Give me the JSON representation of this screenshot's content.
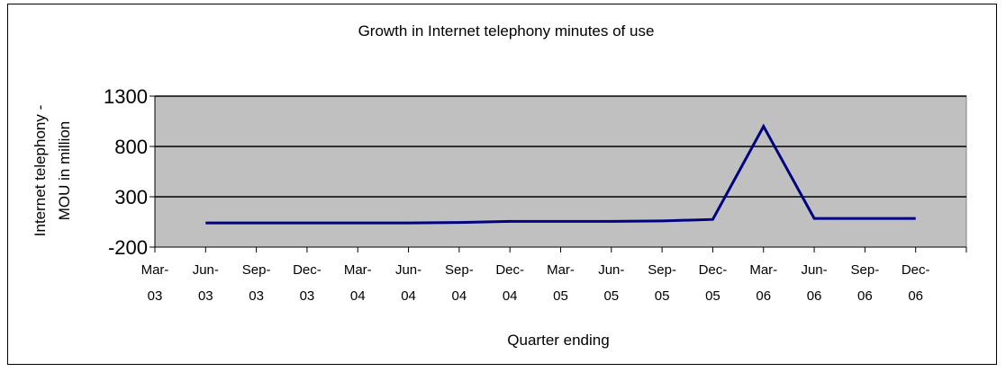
{
  "chart_data": {
    "type": "line",
    "title": "Growth in Internet telephony minutes of use",
    "xlabel": "Quarter ending",
    "ylabel_lines": [
      "Internet telephony -",
      "MOU in million"
    ],
    "categories": [
      [
        "Mar-",
        "03"
      ],
      [
        "Jun-",
        "03"
      ],
      [
        "Sep-",
        "03"
      ],
      [
        "Dec-",
        "03"
      ],
      [
        "Mar-",
        "04"
      ],
      [
        "Jun-",
        "04"
      ],
      [
        "Sep-",
        "04"
      ],
      [
        "Dec-",
        "04"
      ],
      [
        "Mar-",
        "05"
      ],
      [
        "Jun-",
        "05"
      ],
      [
        "Sep-",
        "05"
      ],
      [
        "Dec-",
        "05"
      ],
      [
        "Mar-",
        "06"
      ],
      [
        "Jun-",
        "06"
      ],
      [
        "Sep-",
        "06"
      ],
      [
        "Dec-",
        "06"
      ]
    ],
    "yticks": [
      "1300",
      "800",
      "300",
      "-200"
    ],
    "ylim": [
      -200,
      1300
    ],
    "series": [
      {
        "values": [
          null,
          40,
          40,
          40,
          40,
          40,
          45,
          55,
          55,
          55,
          60,
          75,
          1000,
          85,
          85,
          85
        ]
      }
    ],
    "grid": true,
    "plot_background": "#c0c0c0",
    "line_color": "#000080",
    "gridline_color": "#000000"
  }
}
